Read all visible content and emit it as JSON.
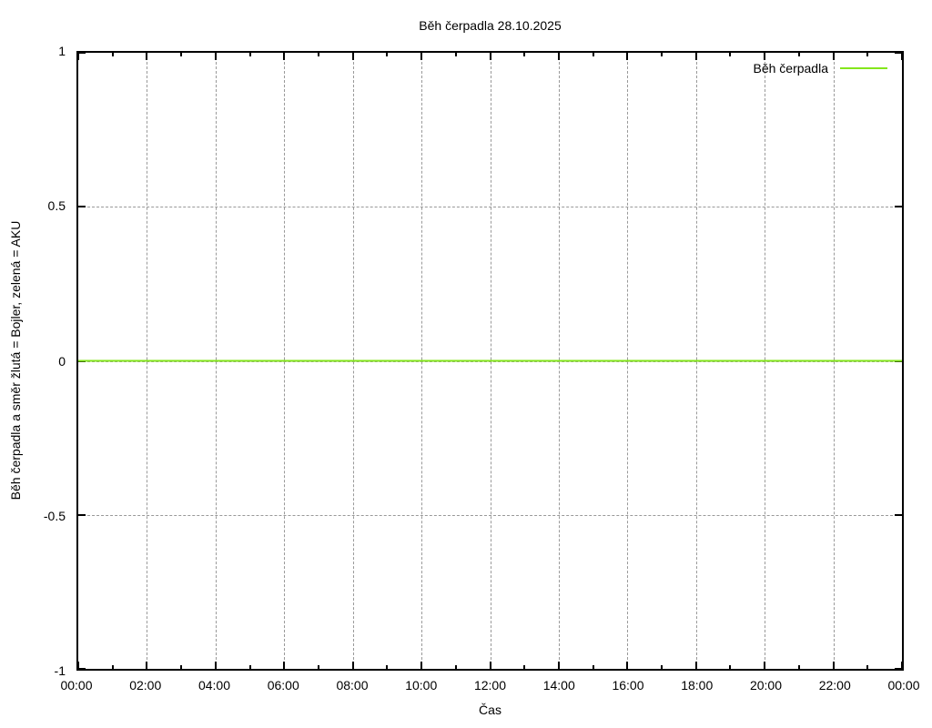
{
  "chart_data": {
    "type": "line",
    "title": "Běh čerpadla 28.10.2025",
    "xlabel": "Čas",
    "ylabel": "Běh čerpadla a směr žlutá = Bojler, zelená = AKU",
    "xlim_hours": [
      0,
      24
    ],
    "ylim": [
      -1,
      1
    ],
    "x_ticks": [
      {
        "hour": 0,
        "label": "00:00"
      },
      {
        "hour": 2,
        "label": "02:00"
      },
      {
        "hour": 4,
        "label": "04:00"
      },
      {
        "hour": 6,
        "label": "06:00"
      },
      {
        "hour": 8,
        "label": "08:00"
      },
      {
        "hour": 10,
        "label": "10:00"
      },
      {
        "hour": 12,
        "label": "12:00"
      },
      {
        "hour": 14,
        "label": "14:00"
      },
      {
        "hour": 16,
        "label": "16:00"
      },
      {
        "hour": 18,
        "label": "18:00"
      },
      {
        "hour": 20,
        "label": "20:00"
      },
      {
        "hour": 22,
        "label": "22:00"
      },
      {
        "hour": 24,
        "label": "00:00"
      }
    ],
    "x_minor_tick_hours": [
      1,
      3,
      5,
      7,
      9,
      11,
      13,
      15,
      17,
      19,
      21,
      23
    ],
    "y_ticks": [
      {
        "value": 1,
        "label": "1"
      },
      {
        "value": 0.5,
        "label": "0.5"
      },
      {
        "value": 0,
        "label": "0"
      },
      {
        "value": -0.5,
        "label": "-0.5"
      },
      {
        "value": -1,
        "label": "-1"
      }
    ],
    "grid": {
      "show": true,
      "color": "#999999",
      "style": "dashed",
      "x_hours": [
        2,
        4,
        6,
        8,
        10,
        12,
        14,
        16,
        18,
        20,
        22
      ],
      "y_values": [
        0.5,
        0,
        -0.5
      ]
    },
    "legend": {
      "position": "top-right",
      "entries": [
        {
          "label": "Běh čerpadla",
          "color": "#84e61c"
        }
      ]
    },
    "series": [
      {
        "name": "Běh čerpadla",
        "color": "#84e61c",
        "points": [
          {
            "x_hour": 0,
            "y": 0
          },
          {
            "x_hour": 24,
            "y": 0
          }
        ]
      }
    ],
    "axis_color": "#000000",
    "background": "#ffffff"
  }
}
